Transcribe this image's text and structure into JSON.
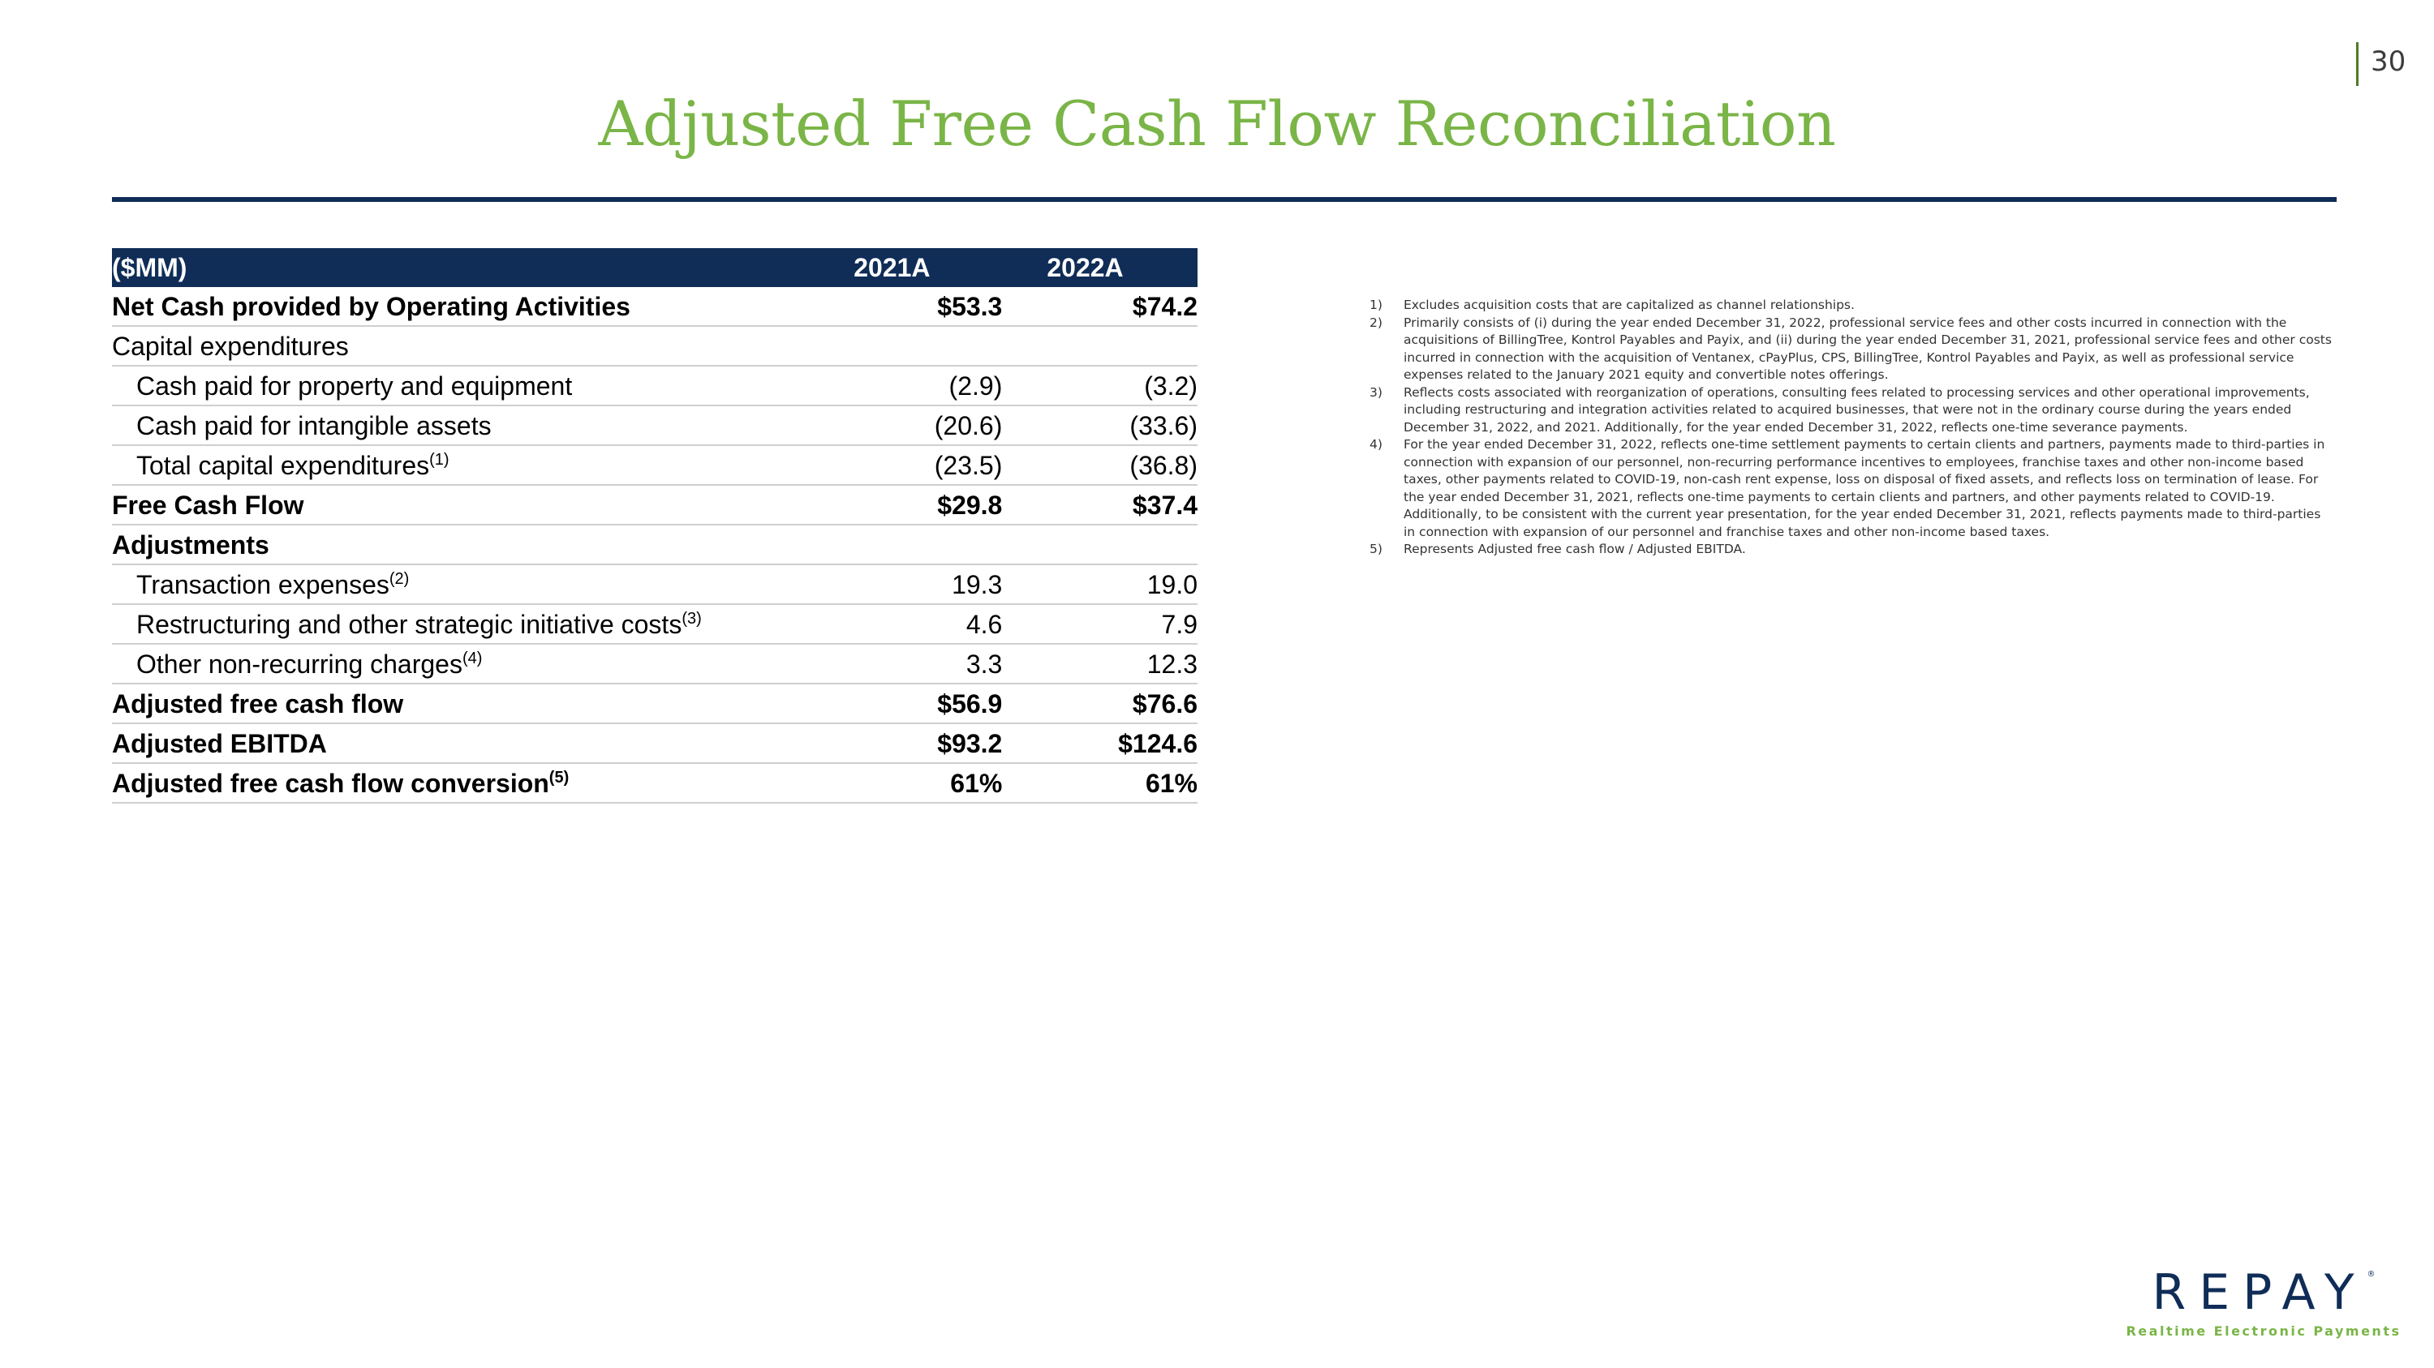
{
  "page_number": "30",
  "title": "Adjusted Free Cash Flow Reconciliation",
  "table": {
    "headers": [
      "($MM)",
      "2021A",
      "2022A"
    ],
    "rows": [
      {
        "label": "Net Cash provided by Operating Activities",
        "sup": "",
        "v2021": "$53.3",
        "v2022": "$74.2",
        "bold": true,
        "indent": false
      },
      {
        "label": "Capital expenditures",
        "sup": "",
        "v2021": "",
        "v2022": "",
        "bold": false,
        "indent": false
      },
      {
        "label": "Cash paid for property and equipment",
        "sup": "",
        "v2021": "(2.9)",
        "v2022": "(3.2)",
        "bold": false,
        "indent": true
      },
      {
        "label": "Cash paid for intangible assets",
        "sup": "",
        "v2021": "(20.6)",
        "v2022": "(33.6)",
        "bold": false,
        "indent": true
      },
      {
        "label": "Total capital expenditures",
        "sup": "(1)",
        "v2021": "(23.5)",
        "v2022": "(36.8)",
        "bold": false,
        "indent": true
      },
      {
        "label": "Free Cash Flow",
        "sup": "",
        "v2021": "$29.8",
        "v2022": "$37.4",
        "bold": true,
        "indent": false
      },
      {
        "label": "Adjustments",
        "sup": "",
        "v2021": "",
        "v2022": "",
        "bold": true,
        "indent": false
      },
      {
        "label": "Transaction expenses",
        "sup": "(2)",
        "v2021": "19.3",
        "v2022": "19.0",
        "bold": false,
        "indent": true
      },
      {
        "label": "Restructuring and other strategic initiative costs",
        "sup": "(3)",
        "v2021": "4.6",
        "v2022": "7.9",
        "bold": false,
        "indent": true
      },
      {
        "label": "Other non-recurring charges",
        "sup": "(4)",
        "v2021": "3.3",
        "v2022": "12.3",
        "bold": false,
        "indent": true
      },
      {
        "label": "Adjusted free cash flow",
        "sup": "",
        "v2021": "$56.9",
        "v2022": "$76.6",
        "bold": true,
        "indent": false
      },
      {
        "label": "Adjusted EBITDA",
        "sup": "",
        "v2021": "$93.2",
        "v2022": "$124.6",
        "bold": true,
        "indent": false
      },
      {
        "label": "Adjusted free cash flow conversion",
        "sup": "(5)",
        "v2021": "61%",
        "v2022": "61%",
        "bold": true,
        "indent": false
      }
    ]
  },
  "footnotes": [
    {
      "num": "1)",
      "text": "Excludes acquisition costs that are capitalized as channel relationships."
    },
    {
      "num": "2)",
      "text": "Primarily consists of (i) during the year ended December 31, 2022, professional service fees and other costs incurred in connection with the acquisitions of BillingTree, Kontrol Payables and Payix, and (ii) during the year ended December 31, 2021, professional service fees and other costs incurred in connection with the acquisition of Ventanex, cPayPlus, CPS, BillingTree, Kontrol Payables and Payix, as well as professional service expenses related to the January 2021 equity and convertible notes offerings."
    },
    {
      "num": "3)",
      "text": "Reflects costs associated with reorganization of operations, consulting fees related to processing services and other operational improvements, including restructuring and integration activities related to acquired businesses, that were not in the ordinary course during the years ended December 31, 2022, and 2021. Additionally, for the year ended December 31, 2022, reflects one-time severance payments."
    },
    {
      "num": "4)",
      "text": "For the year ended December 31, 2022, reflects one-time settlement payments to certain clients and partners, payments made to third-parties in connection with expansion of our personnel, non-recurring performance incentives to employees, franchise taxes and other non-income based taxes, other payments related to COVID-19, non-cash rent expense, loss on disposal of fixed assets, and reflects loss on termination of lease. For the year ended December 31, 2021, reflects one-time payments to certain clients and partners, and other payments related to COVID-19. Additionally, to be consistent with the current year presentation, for the year ended December 31, 2021, reflects payments made to third-parties in connection with expansion of our personnel and franchise taxes and other non-income based taxes."
    },
    {
      "num": "5)",
      "text": "Represents Adjusted free cash flow / Adjusted EBITDA."
    }
  ],
  "logo": {
    "wordmark": "REPAY",
    "trademark": "®",
    "tagline": "Realtime Electronic Payments"
  },
  "colors": {
    "title_green": "#7ab547",
    "navy": "#0f2d57",
    "rule_gray": "#cfcfcf"
  }
}
